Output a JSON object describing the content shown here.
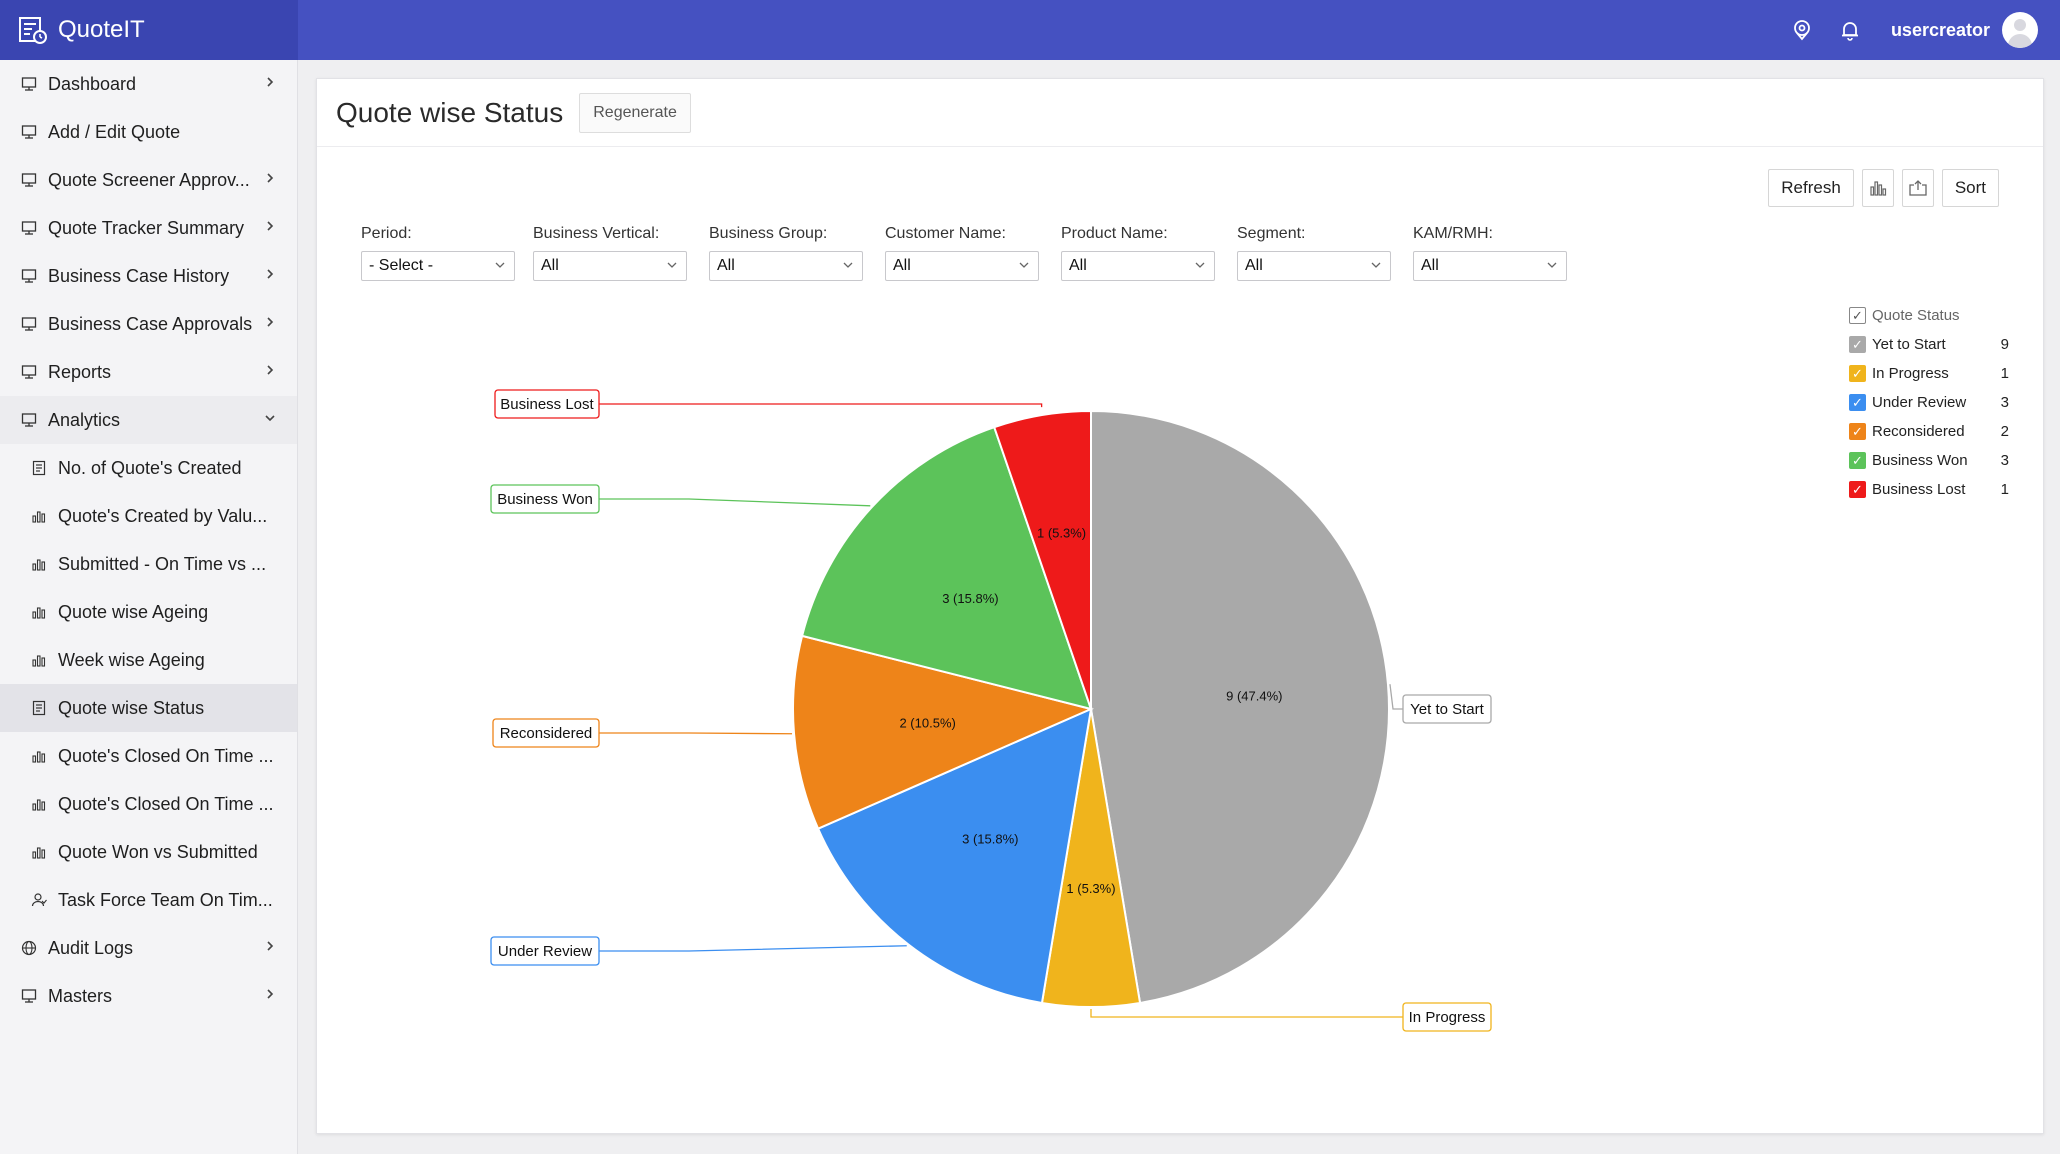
{
  "app": {
    "name": "QuoteIT"
  },
  "topbar": {
    "username": "usercreator"
  },
  "sidebar": {
    "items": [
      {
        "label": "Dashboard",
        "icon": "monitor-icon",
        "chevron": "right",
        "sub": false
      },
      {
        "label": "Add / Edit Quote",
        "icon": "monitor-icon",
        "chevron": "",
        "sub": false
      },
      {
        "label": "Quote Screener Approv...",
        "icon": "monitor-icon",
        "chevron": "right",
        "sub": false
      },
      {
        "label": "Quote Tracker Summary",
        "icon": "monitor-icon",
        "chevron": "right",
        "sub": false
      },
      {
        "label": "Business Case History",
        "icon": "monitor-icon",
        "chevron": "right",
        "sub": false
      },
      {
        "label": "Business Case Approvals",
        "icon": "monitor-icon",
        "chevron": "right",
        "sub": false
      },
      {
        "label": "Reports",
        "icon": "monitor-icon",
        "chevron": "right",
        "sub": false
      },
      {
        "label": "Analytics",
        "icon": "monitor-icon",
        "chevron": "down",
        "sub": false,
        "open": true
      },
      {
        "label": "No. of Quote's Created",
        "icon": "report-icon",
        "chevron": "",
        "sub": true
      },
      {
        "label": "Quote's Created by Valu...",
        "icon": "bar-chart-icon",
        "chevron": "",
        "sub": true
      },
      {
        "label": "Submitted - On Time vs ...",
        "icon": "bar-chart-icon",
        "chevron": "",
        "sub": true
      },
      {
        "label": "Quote wise Ageing",
        "icon": "bar-chart-icon",
        "chevron": "",
        "sub": true
      },
      {
        "label": "Week wise Ageing",
        "icon": "bar-chart-icon",
        "chevron": "",
        "sub": true
      },
      {
        "label": "Quote wise Status",
        "icon": "report-icon",
        "chevron": "",
        "sub": true,
        "active": true
      },
      {
        "label": "Quote's Closed On Time ...",
        "icon": "bar-chart-icon",
        "chevron": "",
        "sub": true
      },
      {
        "label": "Quote's Closed On Time ...",
        "icon": "bar-chart-icon",
        "chevron": "",
        "sub": true
      },
      {
        "label": "Quote Won vs Submitted",
        "icon": "bar-chart-icon",
        "chevron": "",
        "sub": true
      },
      {
        "label": "Task Force Team On Tim...",
        "icon": "users-icon",
        "chevron": "",
        "sub": true
      },
      {
        "label": "Audit Logs",
        "icon": "globe-icon",
        "chevron": "right",
        "sub": false
      },
      {
        "label": "Masters",
        "icon": "monitor-icon",
        "chevron": "right",
        "sub": false
      }
    ]
  },
  "panel": {
    "title": "Quote wise Status",
    "regenerate_label": "Regenerate"
  },
  "toolbar": {
    "refresh_label": "Refresh",
    "sort_label": "Sort"
  },
  "filters": [
    {
      "label": "Period:",
      "value": "- Select -"
    },
    {
      "label": "Business Vertical:",
      "value": "All"
    },
    {
      "label": "Business Group:",
      "value": "All"
    },
    {
      "label": "Customer Name:",
      "value": "All"
    },
    {
      "label": "Product Name:",
      "value": "All"
    },
    {
      "label": "Segment:",
      "value": "All"
    },
    {
      "label": "KAM/RMH:",
      "value": "All"
    }
  ],
  "legend": {
    "title": "Quote Status"
  },
  "chart_data": {
    "type": "pie",
    "title": "",
    "slices": [
      {
        "name": "Yet to Start",
        "value": 9,
        "label": "9 (47.4%)",
        "color": "#a9a9a9"
      },
      {
        "name": "In Progress",
        "value": 1,
        "label": "1 (5.3%)",
        "color": "#f0b41c"
      },
      {
        "name": "Under Review",
        "value": 3,
        "label": "3 (15.8%)",
        "color": "#3b8ef0"
      },
      {
        "name": "Reconsidered",
        "value": 2,
        "label": "2 (10.5%)",
        "color": "#ee8419"
      },
      {
        "name": "Business Won",
        "value": 3,
        "label": "3 (15.8%)",
        "color": "#5cc35a"
      },
      {
        "name": "Business Lost",
        "value": 1,
        "label": "1 (5.3%)",
        "color": "#ee1a1a"
      }
    ]
  }
}
